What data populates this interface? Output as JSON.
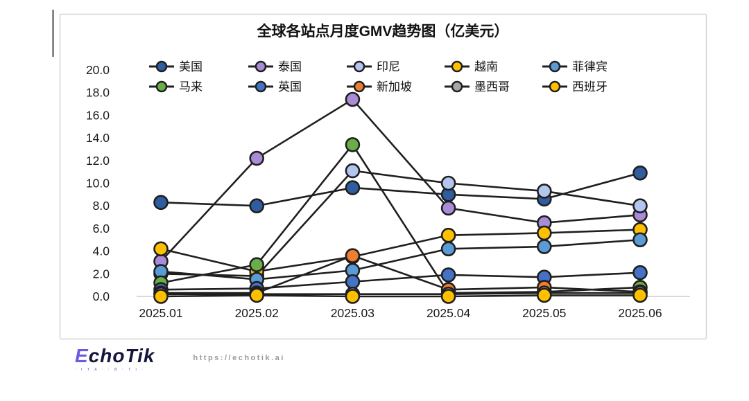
{
  "chart_data": {
    "type": "line",
    "title": "全球各站点月度GMV趋势图（亿美元）",
    "xlabel": "",
    "ylabel": "",
    "ylim": [
      0,
      20
    ],
    "ytick_step": 2,
    "yticks": [
      "20.0",
      "18.0",
      "16.0",
      "14.0",
      "12.0",
      "10.0",
      "8.0",
      "6.0",
      "4.0",
      "2.0",
      "0.0"
    ],
    "grid": "zero-baseline-only",
    "legend_position": "top, two rows of five",
    "marker_style": "large filled circles with dark outline, dark connecting lines",
    "categories": [
      "2025.01",
      "2025.02",
      "2025.03",
      "2025.04",
      "2025.05",
      "2025.06"
    ],
    "series": [
      {
        "name": "美国",
        "color": "#2F5D9E",
        "values": [
          8.3,
          8.0,
          9.6,
          9.0,
          8.6,
          10.9
        ]
      },
      {
        "name": "泰国",
        "color": "#A98BD6",
        "values": [
          3.1,
          12.2,
          17.4,
          7.8,
          6.5,
          7.2
        ]
      },
      {
        "name": "印尼",
        "color": "#B4C6F0",
        "values": [
          2.0,
          1.8,
          11.1,
          10.0,
          9.3,
          8.0
        ]
      },
      {
        "name": "越南",
        "color": "#FFC000",
        "values": [
          4.2,
          2.2,
          3.5,
          5.4,
          5.6,
          5.9
        ]
      },
      {
        "name": "菲律宾",
        "color": "#5B9BD5",
        "values": [
          2.2,
          1.5,
          2.3,
          4.2,
          4.4,
          5.0
        ]
      },
      {
        "name": "马来",
        "color": "#6AAE4A",
        "values": [
          1.2,
          2.8,
          13.4,
          0.3,
          0.4,
          0.8
        ]
      },
      {
        "name": "英国",
        "color": "#4472C4",
        "values": [
          0.6,
          0.7,
          1.3,
          1.9,
          1.7,
          2.1
        ]
      },
      {
        "name": "新加坡",
        "color": "#ED7D31",
        "values": [
          0.3,
          0.3,
          3.6,
          0.6,
          0.8,
          0.4
        ]
      },
      {
        "name": "墨西哥",
        "color": "#A6A6A6",
        "values": [
          0.2,
          0.2,
          0.2,
          0.2,
          0.3,
          0.3
        ]
      },
      {
        "name": "西班牙",
        "color": "#FFC000",
        "values": [
          0.0,
          0.1,
          0.0,
          0.0,
          0.1,
          0.1
        ]
      }
    ]
  },
  "style": {
    "line_color": "#1f1f1f",
    "border_color": "#d4d4d4",
    "baseline_color": "#d9d9d9",
    "tick_text_color": "#1a1a1a"
  },
  "footer": {
    "logo_first_letter": "E",
    "logo_rest": "choTik",
    "tagline": "· I T A · · B · T I ·",
    "url": "https://echotik.ai"
  }
}
